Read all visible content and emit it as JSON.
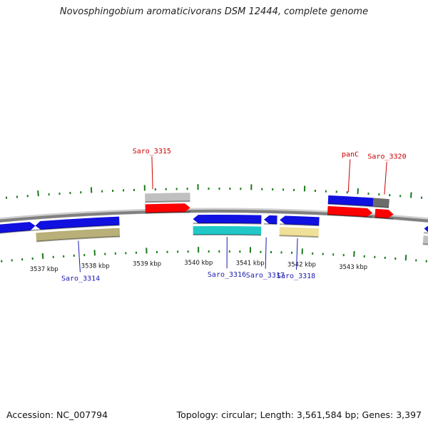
{
  "title": "Novosphingobium aromaticivorans DSM 12444, complete genome",
  "accession": "Accession: NC_007794",
  "topology": "Topology: circular; Length: 3,561,584 bp; Genes: 3,397",
  "colors": {
    "backbone": "#808080",
    "tick": "#1a7a1a",
    "cds_forward": "#1010e0",
    "cds_reverse": "#1010e0",
    "gene_red": "#ff0000",
    "grey": "#c0c0c0",
    "dark_grey": "#6c6c6c",
    "olive": "#b8b078",
    "cyan": "#20c8c8",
    "pale_yellow": "#f0e098",
    "label_red": "#cc0000",
    "label_blue": "#1a1ab0"
  },
  "kbp_labels": [
    {
      "kbp": 3537,
      "text": "3537 kbp"
    },
    {
      "kbp": 3538,
      "text": "3538 kbp"
    },
    {
      "kbp": 3539,
      "text": "3539 kbp"
    },
    {
      "kbp": 3540,
      "text": "3540 kbp"
    },
    {
      "kbp": 3541,
      "text": "3541 kbp"
    },
    {
      "kbp": 3542,
      "text": "3542 kbp"
    },
    {
      "kbp": 3543,
      "text": "3543 kbp"
    }
  ],
  "features": [
    {
      "name": "grey-feature-outer-left",
      "start": 3539.0,
      "end": 3539.85,
      "track": "outer2",
      "color": "grey",
      "dir": "none"
    },
    {
      "name": "red-gene-saro-3315",
      "start": 3539.0,
      "end": 3539.85,
      "track": "outer1",
      "color": "gene_red",
      "dir": "fwd"
    },
    {
      "name": "blue-cds-outer-pan",
      "start": 3542.45,
      "end": 3543.3,
      "track": "outer2",
      "color": "cds_forward",
      "dir": "none"
    },
    {
      "name": "dark-grey-outer",
      "start": 3543.3,
      "end": 3543.6,
      "track": "outer2",
      "color": "dark_grey",
      "dir": "none"
    },
    {
      "name": "red-gene-panc",
      "start": 3542.45,
      "end": 3543.3,
      "track": "outer1",
      "color": "gene_red",
      "dir": "fwd"
    },
    {
      "name": "red-gene-saro-3320",
      "start": 3543.35,
      "end": 3543.7,
      "track": "outer1",
      "color": "gene_red",
      "dir": "fwd"
    },
    {
      "name": "blue-cds-inner-left-edge",
      "start": 3536.2,
      "end": 3536.9,
      "track": "inner1",
      "color": "cds_forward",
      "dir": "fwd"
    },
    {
      "name": "blue-cds-saro-3314",
      "start": 3536.9,
      "end": 3538.5,
      "track": "inner1",
      "color": "cds_reverse",
      "dir": "rev"
    },
    {
      "name": "olive-feature-saro-3314",
      "start": 3536.9,
      "end": 3538.5,
      "track": "inner2",
      "color": "olive",
      "dir": "none"
    },
    {
      "name": "blue-cds-saro-3316",
      "start": 3539.9,
      "end": 3541.2,
      "track": "inner1",
      "color": "cds_reverse",
      "dir": "rev"
    },
    {
      "name": "cyan-feature-saro-3316",
      "start": 3539.9,
      "end": 3541.2,
      "track": "inner2",
      "color": "cyan",
      "dir": "none"
    },
    {
      "name": "blue-cds-saro-3317",
      "start": 3541.25,
      "end": 3541.5,
      "track": "inner1",
      "color": "cds_reverse",
      "dir": "rev"
    },
    {
      "name": "blue-cds-saro-3318",
      "start": 3541.55,
      "end": 3542.3,
      "track": "inner1",
      "color": "cds_reverse",
      "dir": "rev"
    },
    {
      "name": "yellow-feature-saro-3318",
      "start": 3541.55,
      "end": 3542.3,
      "track": "inner2",
      "color": "pale_yellow",
      "dir": "none"
    },
    {
      "name": "blue-cds-inner-right-edge",
      "start": 3544.3,
      "end": 3545.0,
      "track": "inner1",
      "color": "cds_reverse",
      "dir": "rev"
    },
    {
      "name": "grey-feature-inner-right-edge",
      "start": 3544.3,
      "end": 3545.0,
      "track": "inner2",
      "color": "grey",
      "dir": "none"
    }
  ],
  "gene_labels": [
    {
      "text": "Saro_3315",
      "kbp": 3539.15,
      "side": "outer",
      "color": "label_red"
    },
    {
      "text": "panC",
      "kbp": 3542.82,
      "side": "outer",
      "color": "label_red"
    },
    {
      "text": "Saro_3320",
      "kbp": 3543.5,
      "side": "outer",
      "color": "label_red"
    },
    {
      "text": "Saro_3314",
      "kbp": 3537.7,
      "side": "inner",
      "color": "label_blue"
    },
    {
      "text": "Saro_3316",
      "kbp": 3540.55,
      "side": "inner",
      "color": "label_blue"
    },
    {
      "text": "Saro_3317",
      "kbp": 3541.3,
      "side": "inner",
      "color": "label_blue"
    },
    {
      "text": "Saro_3318",
      "kbp": 3541.9,
      "side": "inner",
      "color": "label_blue"
    }
  ]
}
